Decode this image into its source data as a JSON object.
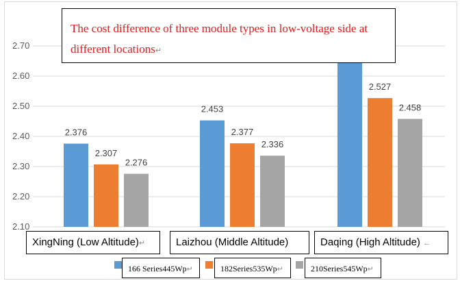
{
  "chart_data": {
    "type": "bar",
    "title": "The cost difference of three module types in low-voltage side at different locations",
    "categories": [
      "XingNing (Low Altitude)",
      "Laizhou (Middle Altitude)",
      "Daqing (High Altitude)"
    ],
    "series": [
      {
        "name": "166 Series445Wp",
        "values": [
          2.376,
          2.453,
          2.652
        ],
        "labels": [
          "2.376",
          "2.453",
          ""
        ],
        "color": "#5b9bd5"
      },
      {
        "name": "182Series535Wp",
        "values": [
          2.307,
          2.377,
          2.527
        ],
        "labels": [
          "2.307",
          "2.377",
          "2.527"
        ],
        "color": "#ed7d31"
      },
      {
        "name": "210Series545Wp",
        "values": [
          2.276,
          2.336,
          2.458
        ],
        "labels": [
          "2.276",
          "2.336",
          "2.458"
        ],
        "color": "#a5a5a5"
      }
    ],
    "yticks": [
      "2.10",
      "2.20",
      "2.30",
      "2.40",
      "2.50",
      "2.60",
      "2.70"
    ],
    "ylim": [
      2.1,
      2.75
    ],
    "grid": true,
    "legend": "bottom"
  },
  "para_mark": "↵",
  "arrow_mark": "←"
}
